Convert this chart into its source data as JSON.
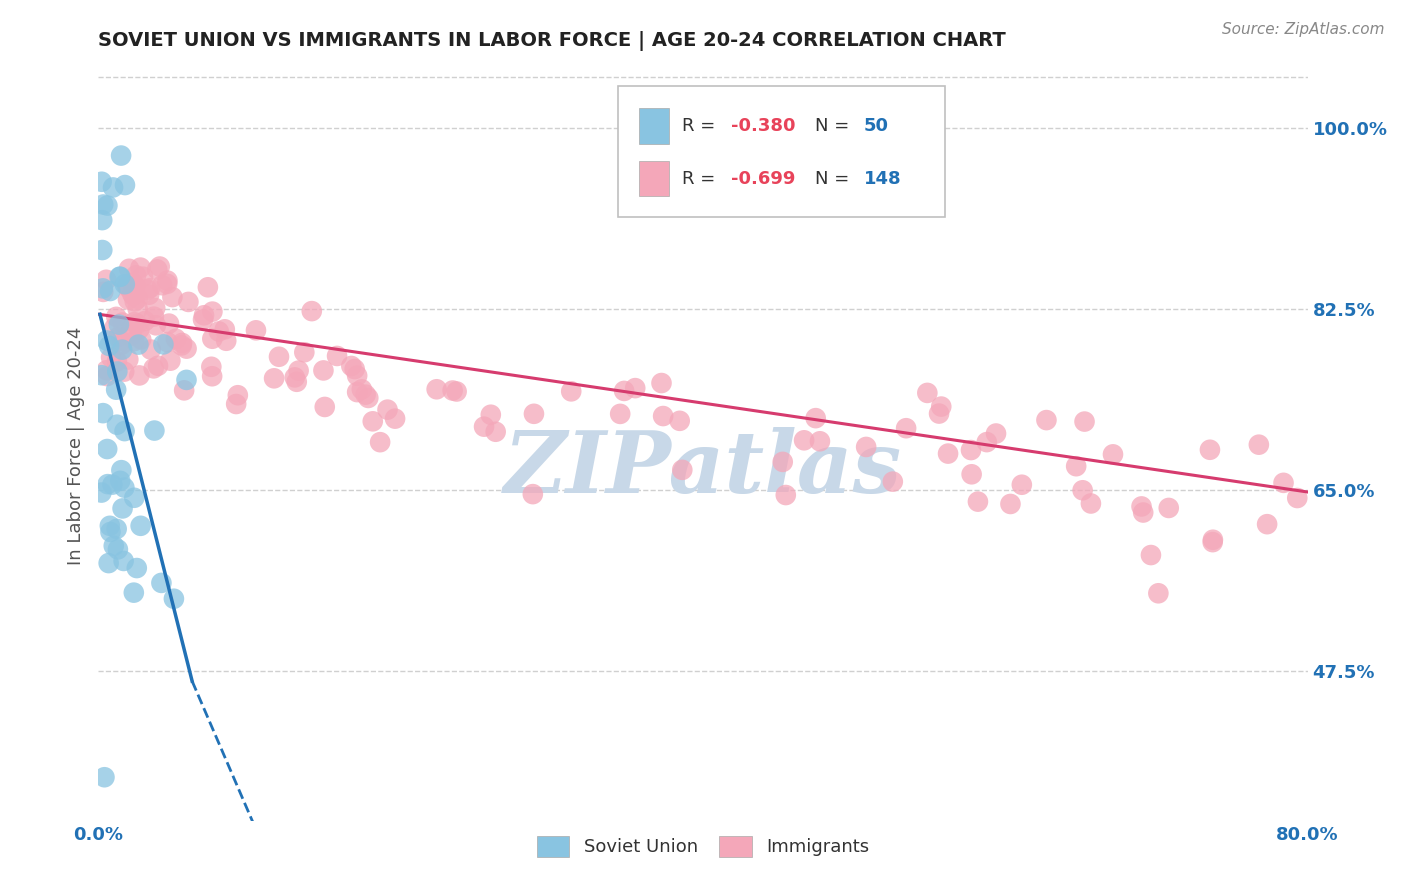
{
  "title": "SOVIET UNION VS IMMIGRANTS IN LABOR FORCE | AGE 20-24 CORRELATION CHART",
  "source_text": "Source: ZipAtlas.com",
  "ylabel": "In Labor Force | Age 20-24",
  "x_min": 0.0,
  "x_max": 0.8,
  "y_min": 0.33,
  "y_max": 1.055,
  "y_ticks": [
    0.475,
    0.65,
    0.825,
    1.0
  ],
  "y_tick_labels": [
    "47.5%",
    "65.0%",
    "82.5%",
    "100.0%"
  ],
  "x_tick_labels": [
    "0.0%",
    "80.0%"
  ],
  "x_ticks": [
    0.0,
    0.8
  ],
  "soviet_color": "#89c4e1",
  "soviet_line_color": "#2171b5",
  "immigrants_color": "#f4a7b9",
  "immigrants_line_color": "#d63b6e",
  "background_color": "#ffffff",
  "grid_color": "#d0d0d0",
  "watermark_text": "ZIPatlas",
  "watermark_color": "#c8d8e8",
  "legend_r_color": "#e8435a",
  "legend_n_color": "#2171b5",
  "tick_color": "#2171b5",
  "source_color": "#888888",
  "title_color": "#222222",
  "ylabel_color": "#555555"
}
